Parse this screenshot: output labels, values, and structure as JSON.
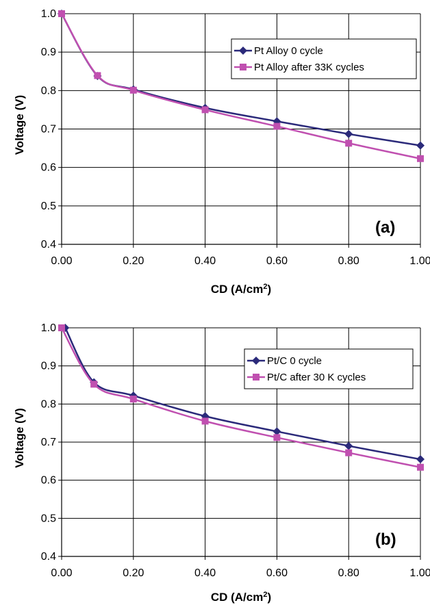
{
  "chart_data": [
    {
      "type": "line",
      "panel_label": "(a)",
      "xlabel": "CD (A/cm",
      "xlabel_sup": "2",
      "xlabel_end": ")",
      "ylabel": "Voltage (V)",
      "xlim": [
        0,
        1.0
      ],
      "ylim": [
        0.4,
        1.0
      ],
      "xticks": [
        0,
        0.2,
        0.4,
        0.6,
        0.8,
        1.0
      ],
      "xtick_labels": [
        "0.00",
        "0.20",
        "0.40",
        "0.60",
        "0.80",
        "1.00"
      ],
      "yticks": [
        0.4,
        0.5,
        0.6,
        0.7,
        0.8,
        0.9,
        1.0
      ],
      "ytick_labels": [
        "0.4",
        "0.5",
        "0.6",
        "0.7",
        "0.8",
        "0.9",
        "1.0"
      ],
      "grid": true,
      "legend_position": "top-right",
      "series": [
        {
          "name": "Pt Alloy 0 cycle",
          "color": "#2b2a7a",
          "marker": "diamond",
          "x": [
            0.0,
            0.1,
            0.2,
            0.4,
            0.6,
            0.8,
            1.0
          ],
          "y": [
            1.0,
            0.838,
            0.803,
            0.755,
            0.72,
            0.687,
            0.657
          ]
        },
        {
          "name": "Pt Alloy after 33K cycles",
          "color": "#c050b0",
          "marker": "square",
          "x": [
            0.0,
            0.1,
            0.2,
            0.4,
            0.6,
            0.8,
            1.0
          ],
          "y": [
            1.0,
            0.839,
            0.801,
            0.75,
            0.707,
            0.663,
            0.623
          ]
        }
      ]
    },
    {
      "type": "line",
      "panel_label": "(b)",
      "xlabel": "CD (A/cm",
      "xlabel_sup": "2",
      "xlabel_end": ")",
      "ylabel": "Voltage (V)",
      "xlim": [
        0,
        1.0
      ],
      "ylim": [
        0.4,
        1.0
      ],
      "xticks": [
        0,
        0.2,
        0.4,
        0.6,
        0.8,
        1.0
      ],
      "xtick_labels": [
        "0.00",
        "0.20",
        "0.40",
        "0.60",
        "0.80",
        "1.00"
      ],
      "yticks": [
        0.4,
        0.5,
        0.6,
        0.7,
        0.8,
        0.9,
        1.0
      ],
      "ytick_labels": [
        "0.4",
        "0.5",
        "0.6",
        "0.7",
        "0.8",
        "0.9",
        "1.0"
      ],
      "grid": true,
      "legend_position": "top-right",
      "series": [
        {
          "name": "Pt/C 0 cycle",
          "color": "#2b2a7a",
          "marker": "diamond",
          "x": [
            0.01,
            0.09,
            0.2,
            0.4,
            0.6,
            0.8,
            1.0
          ],
          "y": [
            1.0,
            0.857,
            0.822,
            0.768,
            0.728,
            0.69,
            0.655
          ]
        },
        {
          "name": "Pt/C after 30 K cycles",
          "color": "#c050b0",
          "marker": "square",
          "x": [
            0.0,
            0.09,
            0.2,
            0.4,
            0.6,
            0.8,
            1.0
          ],
          "y": [
            1.0,
            0.852,
            0.813,
            0.755,
            0.712,
            0.672,
            0.634
          ]
        }
      ]
    }
  ]
}
